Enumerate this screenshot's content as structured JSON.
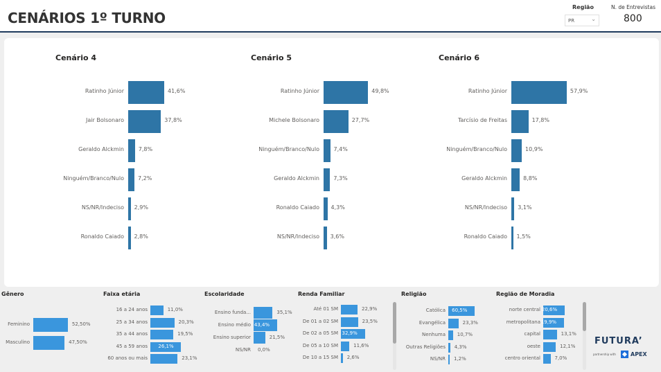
{
  "header": {
    "title": "CENÁRIOS 1º TURNO",
    "region_label": "Região",
    "region_value": "PR",
    "interviews_label": "N. de Entrevistas",
    "interviews_value": "800"
  },
  "colors": {
    "scenario_bar": "#2e75a6",
    "demo_bar": "#3a96dd",
    "header_line": "#1f3a5c"
  },
  "chart_data": [
    {
      "type": "bar",
      "title": "Cenário 4",
      "orientation": "horizontal",
      "categories": [
        "Ratinho Júnior",
        "Jair Bolsonaro",
        "Geraldo Alckmin",
        "Ninguém/Branco/Nulo",
        "NS/NR/Indeciso",
        "Ronaldo Caiado"
      ],
      "values": [
        41.6,
        37.8,
        7.8,
        7.2,
        2.9,
        2.8
      ],
      "labels": [
        "41,6%",
        "37,8%",
        "7,8%",
        "7,2%",
        "2,9%",
        "2,8%"
      ]
    },
    {
      "type": "bar",
      "title": "Cenário 5",
      "orientation": "horizontal",
      "categories": [
        "Ratinho Júnior",
        "Michele Bolsonaro",
        "Ninguém/Branco/Nulo",
        "Geraldo Alckmin",
        "Ronaldo Caiado",
        "NS/NR/Indeciso"
      ],
      "values": [
        49.8,
        27.7,
        7.4,
        7.3,
        4.3,
        3.6
      ],
      "labels": [
        "49,8%",
        "27,7%",
        "7,4%",
        "7,3%",
        "4,3%",
        "3,6%"
      ]
    },
    {
      "type": "bar",
      "title": "Cenário 6",
      "orientation": "horizontal",
      "categories": [
        "Ratinho Júnior",
        "Tarcísio de Freitas",
        "Ninguém/Branco/Nulo",
        "Geraldo Alckmin",
        "NS/NR/Indeciso",
        "Ronaldo Caiado"
      ],
      "values": [
        57.9,
        17.8,
        10.9,
        8.8,
        3.1,
        1.5
      ],
      "labels": [
        "57,9%",
        "17,8%",
        "10,9%",
        "8,8%",
        "3,1%",
        "1,5%"
      ]
    },
    {
      "type": "bar",
      "title": "Gênero",
      "orientation": "horizontal",
      "categories": [
        "Feminino",
        "Masculino"
      ],
      "values": [
        52.5,
        47.5
      ],
      "labels": [
        "52,50%",
        "47,50%"
      ]
    },
    {
      "type": "bar",
      "title": "Faixa etária",
      "orientation": "horizontal",
      "categories": [
        "16 a 24 anos",
        "25 a 34 anos",
        "35 a 44 anos",
        "45 a 59 anos",
        "60 anos ou mais"
      ],
      "values": [
        11.0,
        20.3,
        19.5,
        26.1,
        23.1
      ],
      "labels": [
        "11,0%",
        "20,3%",
        "19,5%",
        "26,1%",
        "23,1%"
      ]
    },
    {
      "type": "bar",
      "title": "Escolaridade",
      "orientation": "horizontal",
      "categories": [
        "Ensino funda...",
        "Ensino médio",
        "Ensino superior",
        "NS/NR"
      ],
      "values": [
        35.1,
        43.4,
        21.5,
        0.0
      ],
      "labels": [
        "35,1%",
        "43,4%",
        "21,5%",
        "0,0%"
      ]
    },
    {
      "type": "bar",
      "title": "Renda Familiar",
      "orientation": "horizontal",
      "categories": [
        "Até 01 SM",
        "De 01 a 02 SM",
        "De 02 a 05 SM",
        "De 05 a 10 SM",
        "De 10 a 15 SM"
      ],
      "values": [
        22.9,
        23.5,
        32.9,
        11.6,
        2.6
      ],
      "labels": [
        "22,9%",
        "23,5%",
        "32,9%",
        "11,6%",
        "2,6%"
      ]
    },
    {
      "type": "bar",
      "title": "Religião",
      "orientation": "horizontal",
      "categories": [
        "Católica",
        "Evangélica",
        "Nenhuma",
        "Outras Religiões",
        "NS/NR"
      ],
      "values": [
        60.5,
        23.3,
        10.7,
        4.3,
        1.2
      ],
      "labels": [
        "60,5%",
        "23,3%",
        "10,7%",
        "4,3%",
        "1,2%"
      ]
    },
    {
      "type": "bar",
      "title": "Região de Moradia",
      "orientation": "horizontal",
      "categories": [
        "norte central",
        "metropolitana",
        "capital",
        "oeste",
        "centro oriental"
      ],
      "values": [
        20.6,
        19.9,
        13.1,
        12.1,
        7.0
      ],
      "labels": [
        "20,6%",
        "19,9%",
        "13,1%",
        "12,1%",
        "7,0%"
      ]
    }
  ],
  "logo": {
    "brand": "FUTURA’",
    "partner_text": "partnership with",
    "partner_brand": "APEX"
  }
}
